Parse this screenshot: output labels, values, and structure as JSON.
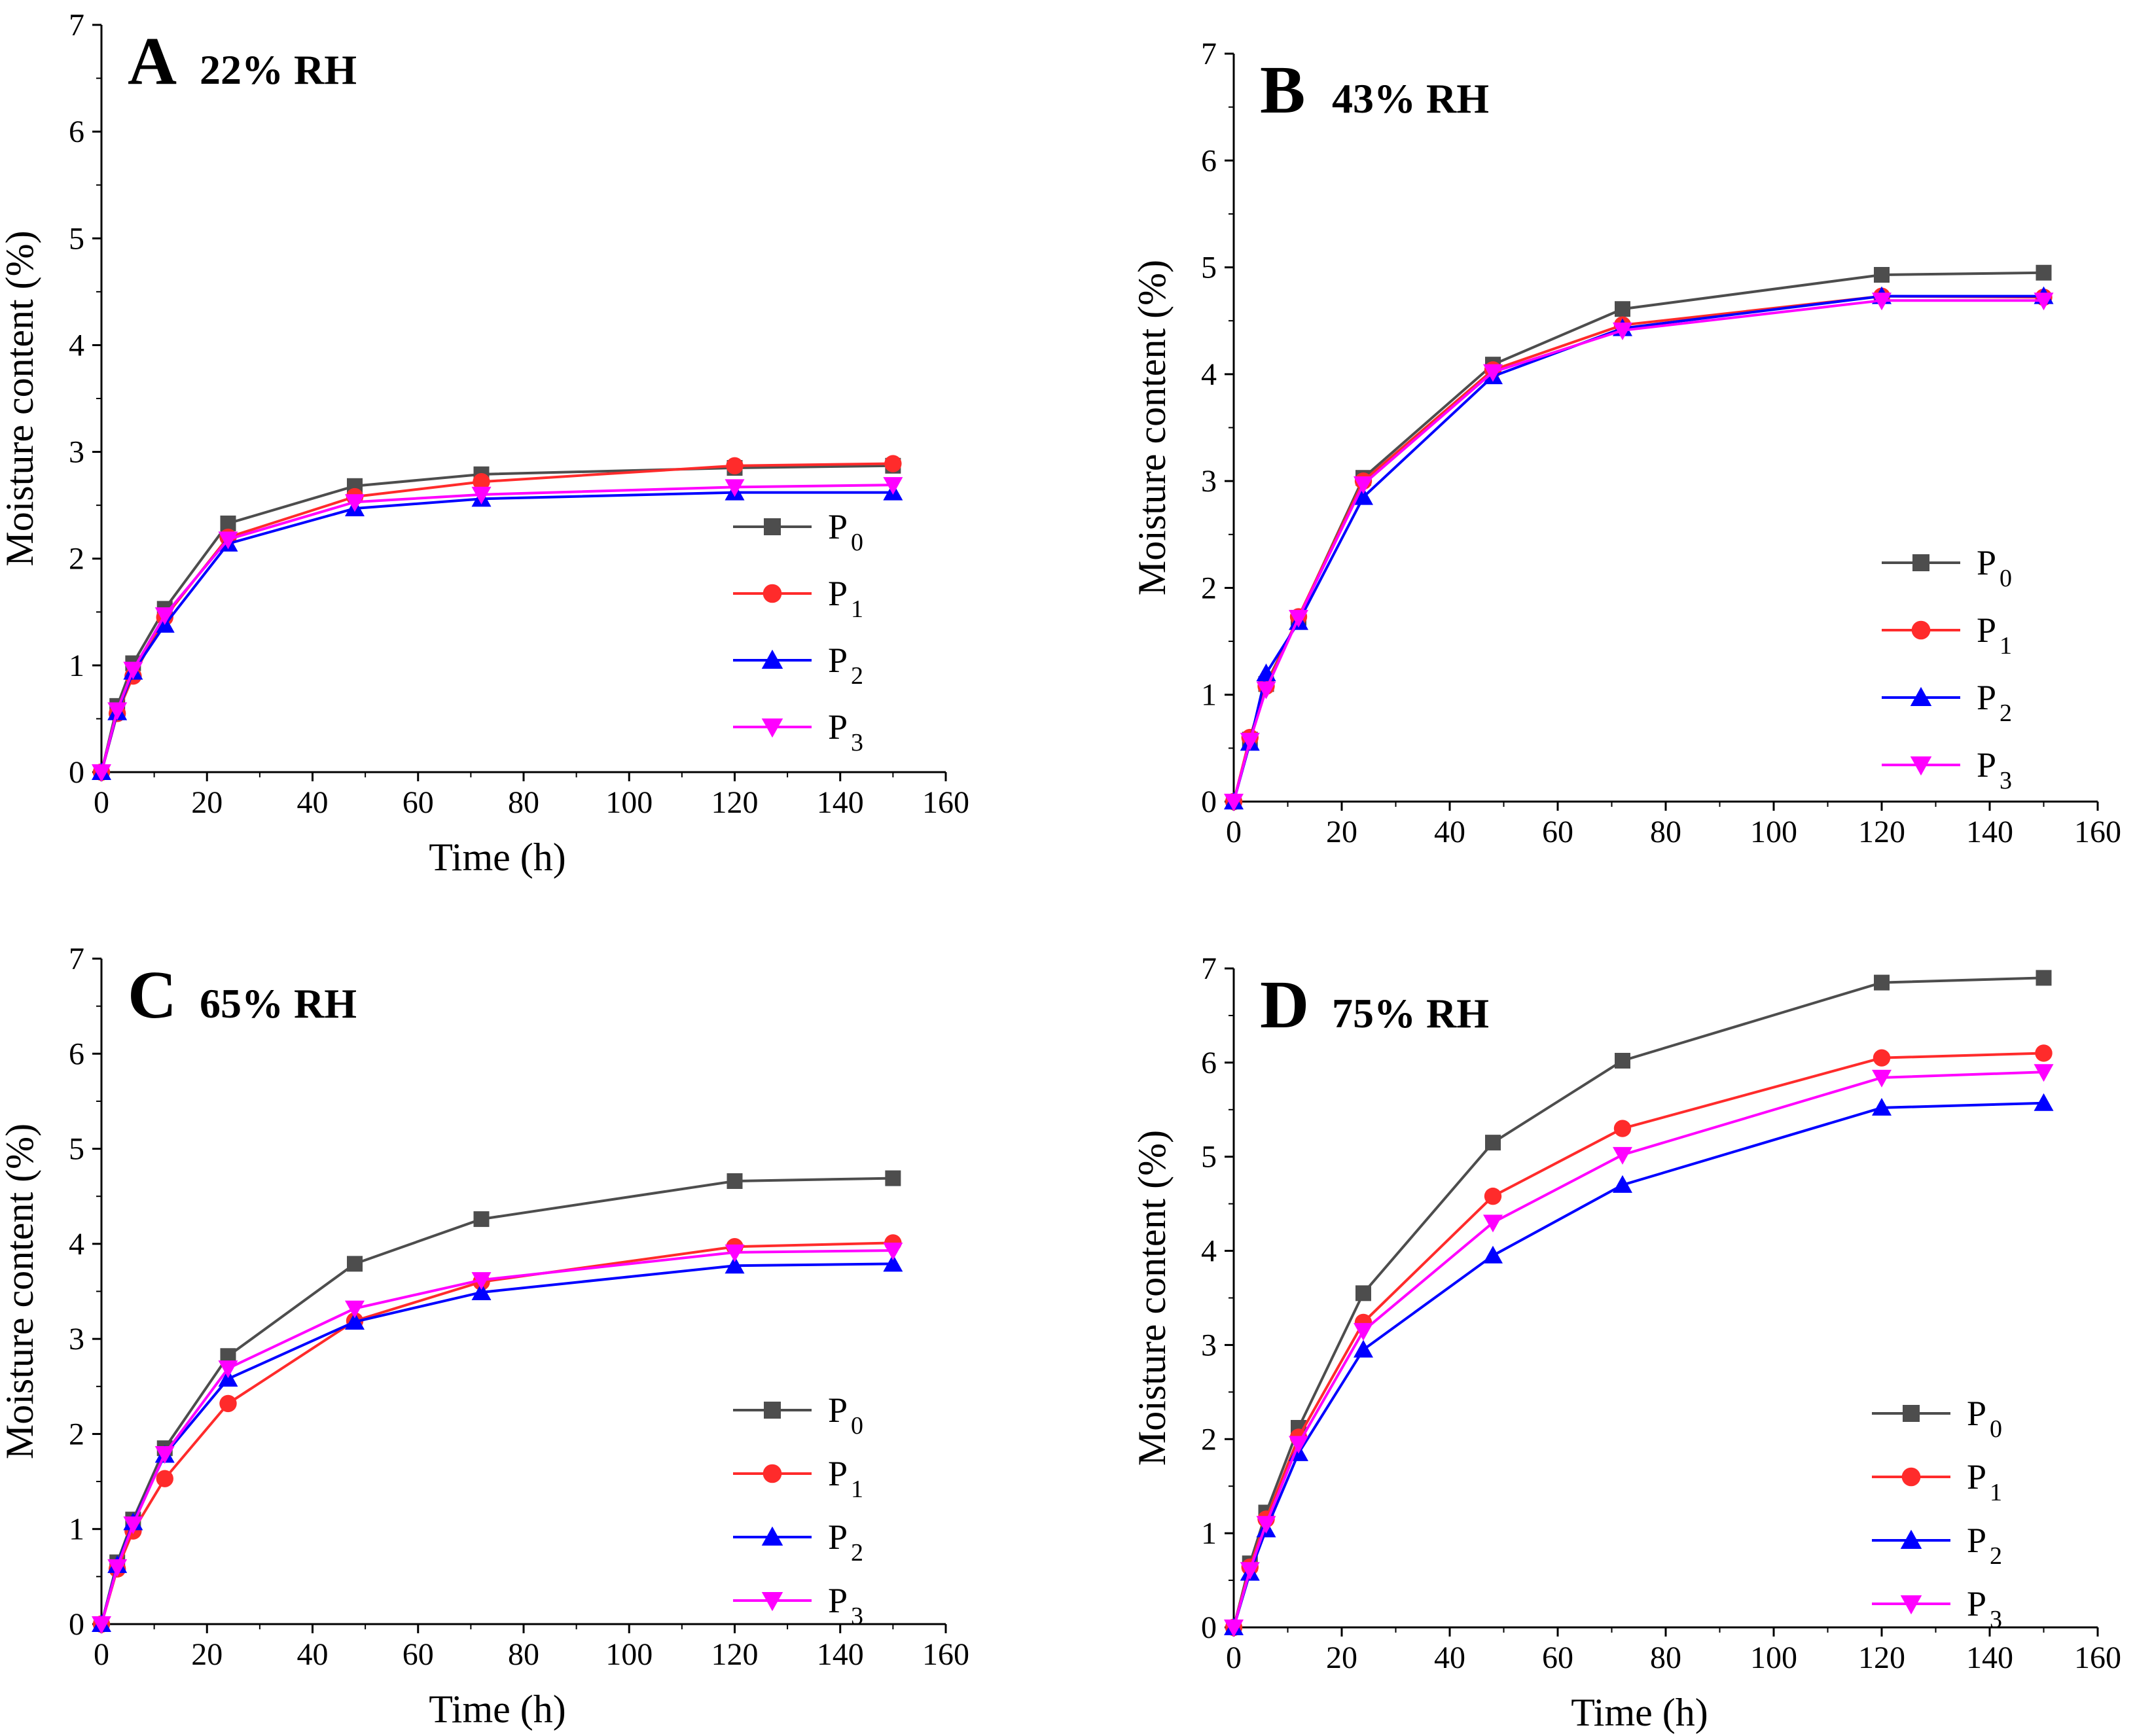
{
  "figure": {
    "panels": [
      "A",
      "B",
      "C",
      "D"
    ]
  },
  "chart_data": [
    {
      "type": "line",
      "panel": "A",
      "title": "22% RH",
      "xlabel": "Time (h)",
      "ylabel": "Moisture content (%)",
      "xlim": [
        0,
        160
      ],
      "ylim": [
        0,
        7
      ],
      "xticks": [
        "0",
        "20",
        "40",
        "60",
        "80",
        "100",
        "120",
        "140",
        "160"
      ],
      "yticks": [
        "0",
        "1",
        "2",
        "3",
        "4",
        "5",
        "6",
        "7"
      ],
      "legend_position": "right-middle",
      "x": [
        0,
        3,
        6,
        12,
        24,
        48,
        72,
        120,
        150
      ],
      "series": [
        {
          "name": "P",
          "sub": "0",
          "color": "#4d4d4d",
          "marker": "square",
          "values": [
            0,
            0.62,
            1.02,
            1.53,
            2.33,
            2.68,
            2.79,
            2.85,
            2.87
          ]
        },
        {
          "name": "P",
          "sub": "1",
          "color": "#ff2b2b",
          "marker": "circle",
          "values": [
            0,
            0.55,
            0.9,
            1.45,
            2.2,
            2.58,
            2.72,
            2.87,
            2.89
          ]
        },
        {
          "name": "P",
          "sub": "2",
          "color": "#0000ff",
          "marker": "triangle-up",
          "values": [
            0,
            0.56,
            0.94,
            1.38,
            2.14,
            2.47,
            2.56,
            2.62,
            2.62
          ]
        },
        {
          "name": "P",
          "sub": "3",
          "color": "#ff00ff",
          "marker": "triangle-down",
          "values": [
            0,
            0.58,
            0.96,
            1.47,
            2.18,
            2.53,
            2.6,
            2.67,
            2.69
          ]
        }
      ]
    },
    {
      "type": "line",
      "panel": "B",
      "title": "43% RH",
      "xlabel": "",
      "ylabel": "Moisture content (%)",
      "xlim": [
        0,
        160
      ],
      "ylim": [
        0,
        7
      ],
      "xticks": [
        "0",
        "20",
        "40",
        "60",
        "80",
        "100",
        "120",
        "140",
        "160"
      ],
      "yticks": [
        "0",
        "1",
        "2",
        "3",
        "4",
        "5",
        "6",
        "7"
      ],
      "legend_position": "right-middle",
      "x": [
        0,
        3,
        6,
        12,
        24,
        48,
        72,
        120,
        150
      ],
      "series": [
        {
          "name": "P",
          "sub": "0",
          "color": "#4d4d4d",
          "marker": "square",
          "values": [
            0,
            0.58,
            1.1,
            1.72,
            3.03,
            4.09,
            4.61,
            4.93,
            4.95
          ]
        },
        {
          "name": "P",
          "sub": "1",
          "color": "#ff2b2b",
          "marker": "circle",
          "values": [
            0,
            0.6,
            1.08,
            1.73,
            3.0,
            4.04,
            4.46,
            4.73,
            4.72
          ]
        },
        {
          "name": "P",
          "sub": "2",
          "color": "#0000ff",
          "marker": "triangle-up",
          "values": [
            0,
            0.55,
            1.2,
            1.68,
            2.85,
            3.98,
            4.43,
            4.73,
            4.73
          ]
        },
        {
          "name": "P",
          "sub": "3",
          "color": "#ff00ff",
          "marker": "triangle-down",
          "values": [
            0,
            0.57,
            1.05,
            1.72,
            2.97,
            4.02,
            4.41,
            4.69,
            4.69
          ]
        }
      ]
    },
    {
      "type": "line",
      "panel": "C",
      "title": "65% RH",
      "xlabel": "Time (h)",
      "ylabel": "Moisture content (%)",
      "xlim": [
        0,
        160
      ],
      "ylim": [
        0,
        7
      ],
      "xticks": [
        "0",
        "20",
        "40",
        "60",
        "80",
        "100",
        "120",
        "140",
        "160"
      ],
      "yticks": [
        "0",
        "1",
        "2",
        "3",
        "4",
        "5",
        "6",
        "7"
      ],
      "legend_position": "right-bottom",
      "x": [
        0,
        3,
        6,
        12,
        24,
        48,
        72,
        120,
        150
      ],
      "series": [
        {
          "name": "P",
          "sub": "0",
          "color": "#4d4d4d",
          "marker": "square",
          "values": [
            0,
            0.65,
            1.1,
            1.85,
            2.82,
            3.79,
            4.26,
            4.66,
            4.69
          ]
        },
        {
          "name": "P",
          "sub": "1",
          "color": "#ff2b2b",
          "marker": "circle",
          "values": [
            0,
            0.58,
            0.98,
            1.53,
            2.32,
            3.19,
            3.6,
            3.97,
            4.01
          ]
        },
        {
          "name": "P",
          "sub": "2",
          "color": "#0000ff",
          "marker": "triangle-up",
          "values": [
            0,
            0.62,
            1.07,
            1.78,
            2.58,
            3.18,
            3.49,
            3.77,
            3.79
          ]
        },
        {
          "name": "P",
          "sub": "3",
          "color": "#ff00ff",
          "marker": "triangle-down",
          "values": [
            0,
            0.6,
            1.05,
            1.79,
            2.69,
            3.32,
            3.62,
            3.91,
            3.93
          ]
        }
      ]
    },
    {
      "type": "line",
      "panel": "D",
      "title": "75% RH",
      "xlabel": "Time (h)",
      "ylabel": "Moisture content (%)",
      "xlim": [
        0,
        160
      ],
      "ylim": [
        0,
        7
      ],
      "xticks": [
        "0",
        "20",
        "40",
        "60",
        "80",
        "100",
        "120",
        "140",
        "160"
      ],
      "yticks": [
        "0",
        "1",
        "2",
        "3",
        "4",
        "5",
        "6",
        "7"
      ],
      "legend_position": "right-bottom",
      "x": [
        0,
        3,
        6,
        12,
        24,
        48,
        72,
        120,
        150
      ],
      "series": [
        {
          "name": "P",
          "sub": "0",
          "color": "#4d4d4d",
          "marker": "square",
          "values": [
            0,
            0.68,
            1.22,
            2.12,
            3.55,
            5.15,
            6.02,
            6.85,
            6.9
          ]
        },
        {
          "name": "P",
          "sub": "1",
          "color": "#ff2b2b",
          "marker": "circle",
          "values": [
            0,
            0.64,
            1.15,
            2.02,
            3.24,
            4.58,
            5.3,
            6.05,
            6.1
          ]
        },
        {
          "name": "P",
          "sub": "2",
          "color": "#0000ff",
          "marker": "triangle-up",
          "values": [
            0,
            0.58,
            1.04,
            1.85,
            2.95,
            3.95,
            4.7,
            5.52,
            5.57
          ]
        },
        {
          "name": "P",
          "sub": "3",
          "color": "#ff00ff",
          "marker": "triangle-down",
          "values": [
            0,
            0.61,
            1.1,
            1.95,
            3.15,
            4.3,
            5.02,
            5.84,
            5.9
          ]
        }
      ]
    }
  ]
}
